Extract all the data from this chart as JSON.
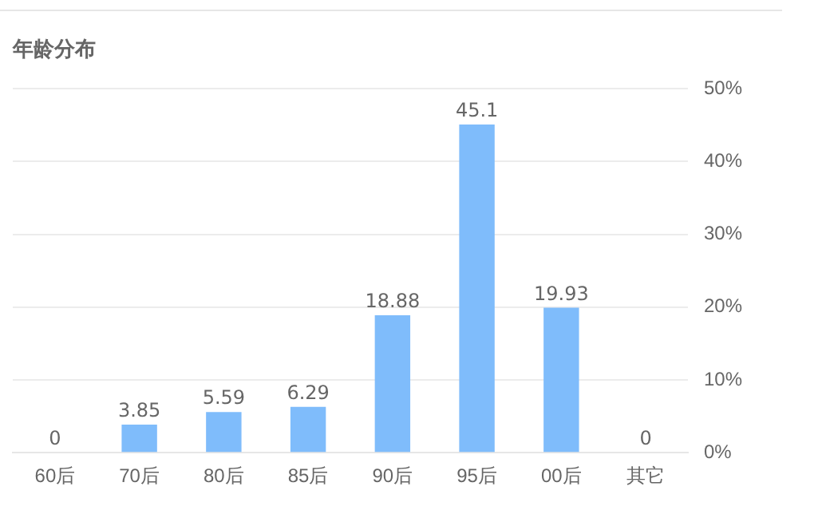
{
  "chart_data": {
    "type": "bar",
    "title": "年龄分布",
    "categories": [
      "60后",
      "70后",
      "80后",
      "85后",
      "90后",
      "95后",
      "00后",
      "其它"
    ],
    "values": [
      0,
      3.85,
      5.59,
      6.29,
      18.88,
      45.1,
      19.93,
      0
    ],
    "color": "#7fbcfb",
    "ylim": [
      0,
      50
    ],
    "yticks": [
      {
        "value": 0,
        "label": "0%"
      },
      {
        "value": 10,
        "label": "10%"
      },
      {
        "value": 20,
        "label": "20%"
      },
      {
        "value": 30,
        "label": "30%"
      },
      {
        "value": 40,
        "label": "40%"
      },
      {
        "value": 50,
        "label": "50%"
      }
    ],
    "grid": "y",
    "legend": false,
    "data_labels": true
  }
}
